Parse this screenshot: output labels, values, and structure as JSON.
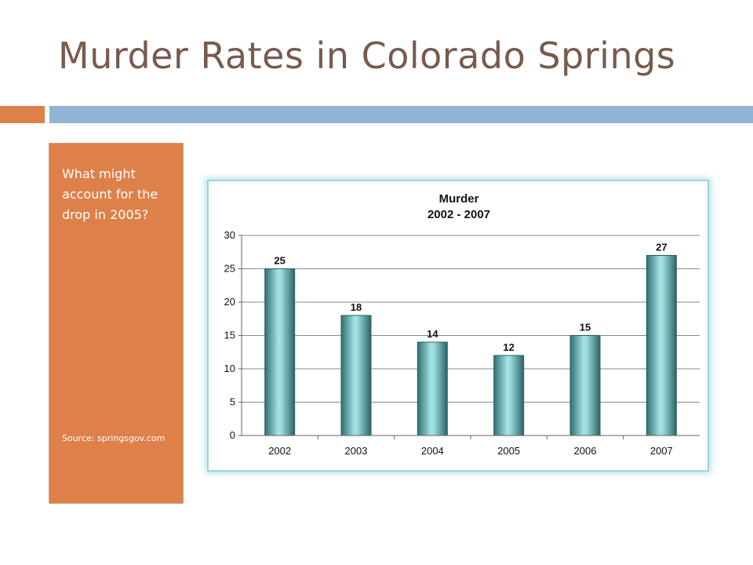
{
  "slide": {
    "title": "Murder Rates in Colorado Springs",
    "accent_orange": "#de8049",
    "accent_blue": "#92b4d4"
  },
  "sidebar": {
    "question": "What might account for the drop in 2005?",
    "source": "Source: springsgov.com",
    "background": "#de8049"
  },
  "chart_data": {
    "type": "bar",
    "title": "Murder",
    "subtitle": "2002 - 2007",
    "categories": [
      "2002",
      "2003",
      "2004",
      "2005",
      "2006",
      "2007"
    ],
    "values": [
      25,
      18,
      14,
      12,
      15,
      27
    ],
    "ylim": [
      0,
      30
    ],
    "yticks": [
      0,
      5,
      10,
      15,
      20,
      25,
      30
    ],
    "xlabel": "",
    "ylabel": "",
    "grid": true,
    "legend": "none",
    "data_labels": true,
    "bar_color": "#6fc7c8"
  }
}
